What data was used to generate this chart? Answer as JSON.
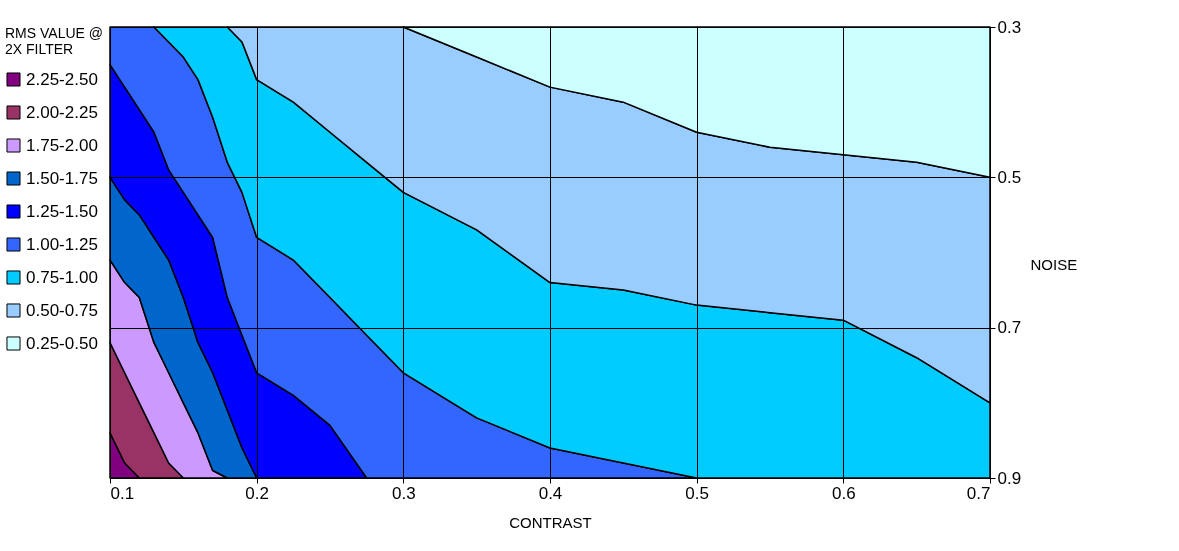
{
  "chart_data": {
    "type": "area",
    "xlabel": "CONTRAST",
    "ylabel": "NOISE",
    "legend_title": "RMS VALUE @ 2X FILTER",
    "x": [
      0.1,
      0.11,
      0.12,
      0.13,
      0.14,
      0.15,
      0.16,
      0.17,
      0.18,
      0.19,
      0.2,
      0.225,
      0.25,
      0.275,
      0.3,
      0.35,
      0.4,
      0.45,
      0.5,
      0.55,
      0.6,
      0.65,
      0.7
    ],
    "series": [
      {
        "name": "2.25-2.50",
        "color": "#800080",
        "values": [
          0.9,
          0.9,
          0.9,
          null,
          null,
          null,
          null,
          null,
          null,
          null,
          null,
          null,
          null,
          null,
          null,
          null,
          null,
          null,
          null,
          null,
          null,
          null,
          null
        ]
      },
      {
        "name": "2.00-2.25",
        "color": "#993366",
        "values": [
          0.84,
          0.88,
          0.9,
          0.9,
          0.9,
          0.9,
          null,
          null,
          null,
          null,
          null,
          null,
          null,
          null,
          null,
          null,
          null,
          null,
          null,
          null,
          null,
          null,
          null
        ]
      },
      {
        "name": "1.75-2.00",
        "color": "#cc99ff",
        "values": [
          0.72,
          0.76,
          0.8,
          0.84,
          0.88,
          0.9,
          0.9,
          0.9,
          0.9,
          null,
          null,
          null,
          null,
          null,
          null,
          null,
          null,
          null,
          null,
          null,
          null,
          null,
          null
        ]
      },
      {
        "name": "1.50-1.75",
        "color": "#0066cc",
        "values": [
          0.61,
          0.64,
          0.66,
          0.72,
          0.76,
          0.8,
          0.84,
          0.89,
          0.9,
          0.9,
          0.9,
          null,
          null,
          null,
          null,
          null,
          null,
          null,
          null,
          null,
          null,
          null,
          null
        ]
      },
      {
        "name": "1.25-1.50",
        "color": "#0000ff",
        "values": [
          0.5,
          0.53,
          0.55,
          0.58,
          0.61,
          0.66,
          0.72,
          0.76,
          0.81,
          0.86,
          0.9,
          0.9,
          0.9,
          0.9,
          null,
          null,
          null,
          null,
          null,
          null,
          null,
          null,
          null
        ]
      },
      {
        "name": "1.00-1.25",
        "color": "#3366ff",
        "values": [
          0.35,
          0.38,
          0.41,
          0.44,
          0.49,
          0.52,
          0.55,
          0.58,
          0.66,
          0.71,
          0.76,
          0.79,
          0.83,
          0.9,
          0.9,
          0.9,
          0.9,
          0.9,
          0.9,
          null,
          null,
          null,
          null
        ]
      },
      {
        "name": "0.75-1.00",
        "color": "#00ccff",
        "values": [
          null,
          null,
          null,
          0.3,
          0.32,
          0.34,
          0.37,
          0.42,
          0.48,
          0.52,
          0.58,
          0.61,
          0.66,
          0.71,
          0.76,
          0.82,
          0.86,
          0.88,
          0.9,
          0.9,
          0.9,
          0.9,
          0.9
        ]
      },
      {
        "name": "0.50-0.75",
        "color": "#99ccff",
        "values": [
          null,
          null,
          null,
          null,
          null,
          null,
          null,
          null,
          0.3,
          0.32,
          0.37,
          0.4,
          0.44,
          0.48,
          0.52,
          0.57,
          0.64,
          0.65,
          0.67,
          0.68,
          0.69,
          0.74,
          0.8
        ]
      },
      {
        "name": "0.25-0.50",
        "color": "#ccffff",
        "values": [
          null,
          null,
          null,
          null,
          null,
          null,
          null,
          null,
          null,
          null,
          null,
          null,
          null,
          null,
          0.3,
          0.34,
          0.38,
          0.4,
          0.44,
          0.46,
          0.47,
          0.48,
          0.5
        ]
      }
    ],
    "xlim": [
      0.1,
      0.7
    ],
    "xticks": [
      0.1,
      0.2,
      0.3,
      0.4,
      0.5,
      0.6,
      0.7
    ],
    "ylim": [
      0.9,
      0.3
    ],
    "yticks": [
      0.3,
      0.5,
      0.7,
      0.9
    ],
    "grid": true,
    "legend": "left"
  }
}
